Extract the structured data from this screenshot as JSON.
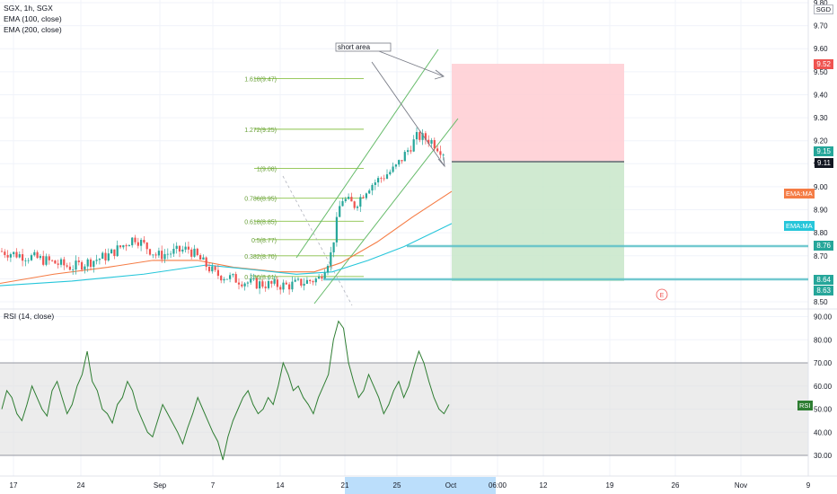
{
  "header": {
    "symbol": "SGX, 1h, SGX",
    "indicators": [
      "EMA (100, close)",
      "EMA (200, close)"
    ]
  },
  "currency": "SGD",
  "price_axis": [
    "9.80",
    "9.70",
    "9.60",
    "9.50",
    "9.40",
    "9.30",
    "9.20",
    "9.10",
    "9.00",
    "8.90",
    "8.80",
    "8.70",
    "8.60",
    "8.50"
  ],
  "price_labels": {
    "target": "9.52",
    "last": "9.15",
    "entry": "9.11",
    "level1": "8.76",
    "level2": "8.64",
    "level3": "8.63"
  },
  "ema_tags": [
    "EMA:MA",
    "EMA:MA"
  ],
  "fib_levels": [
    {
      "label": "1.618(9.47)",
      "price": 9.47
    },
    {
      "label": "1.272(9.25)",
      "price": 9.25
    },
    {
      "label": "1(9.08)",
      "price": 9.08
    },
    {
      "label": "0.786(8.95)",
      "price": 8.95
    },
    {
      "label": "0.618(8.85)",
      "price": 8.85
    },
    {
      "label": "0.5(8.77)",
      "price": 8.77
    },
    {
      "label": "0.382(8.70)",
      "price": 8.7
    },
    {
      "label": "0.236(8.61)",
      "price": 8.61
    }
  ],
  "annotation": "short area",
  "earnings_marker": "E",
  "rsi": {
    "label": "RSI (14, close)",
    "tag": "RSI",
    "axis": [
      "90.00",
      "80.00",
      "70.00",
      "60.00",
      "50.00",
      "40.00",
      "30.00"
    ],
    "band": [
      30,
      70
    ]
  },
  "time_axis": [
    "17",
    "24",
    "Sep",
    "7",
    "14",
    "21",
    "25",
    "Oct",
    "06:00",
    "12",
    "19",
    "26",
    "Nov",
    "9"
  ],
  "colors": {
    "up": "#26a69a",
    "down": "#ef5350",
    "ema100": "#f57c45",
    "ema200": "#26c6da",
    "fib": "#8bc34a",
    "rsi": "#2e7d32",
    "target_zone": "#ffcdd2",
    "stop_zone": "#c8e6c9"
  }
}
